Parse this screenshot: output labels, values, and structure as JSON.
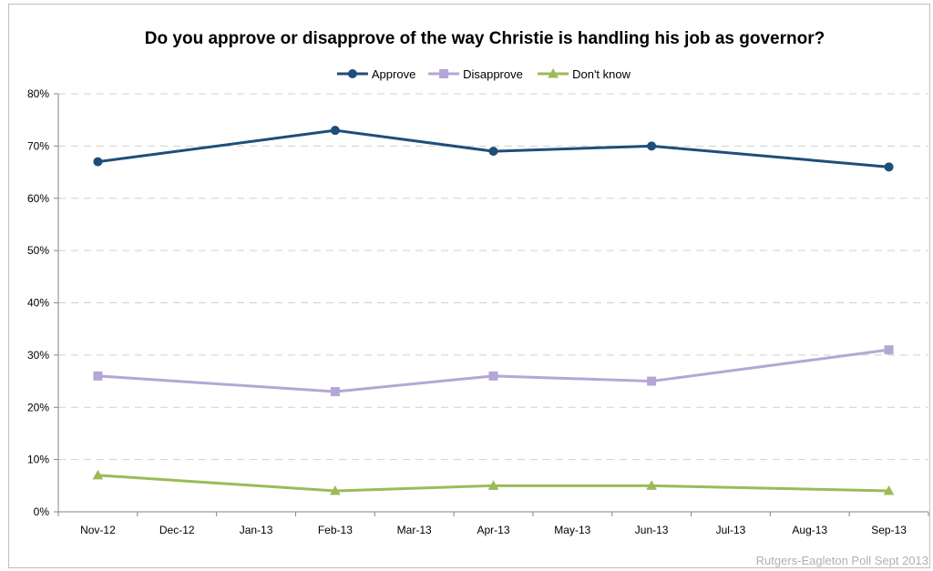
{
  "chart_data": {
    "type": "line",
    "title": "Do you approve or disapprove of the way Christie is handling his job as governor?",
    "categories": [
      "Nov-12",
      "Dec-12",
      "Jan-13",
      "Feb-13",
      "Mar-13",
      "Apr-13",
      "May-13",
      "Jun-13",
      "Jul-13",
      "Aug-13",
      "Sep-13"
    ],
    "ylim": [
      0,
      80
    ],
    "yticks": [
      "0%",
      "10%",
      "20%",
      "30%",
      "40%",
      "50%",
      "60%",
      "70%",
      "80%"
    ],
    "grid": true,
    "legend_position": "top",
    "series": [
      {
        "name": "Approve",
        "color": "#1f4e79",
        "marker": "circle",
        "points": [
          {
            "x": "Nov-12",
            "y": 67
          },
          {
            "x": "Feb-13",
            "y": 73
          },
          {
            "x": "Apr-13",
            "y": 69
          },
          {
            "x": "Jun-13",
            "y": 70
          },
          {
            "x": "Sep-13",
            "y": 66
          }
        ]
      },
      {
        "name": "Disapprove",
        "color": "#b4a7d6",
        "marker": "square",
        "points": [
          {
            "x": "Nov-12",
            "y": 26
          },
          {
            "x": "Feb-13",
            "y": 23
          },
          {
            "x": "Apr-13",
            "y": 26
          },
          {
            "x": "Jun-13",
            "y": 25
          },
          {
            "x": "Sep-13",
            "y": 31
          }
        ]
      },
      {
        "name": "Don't know",
        "color": "#9bbb59",
        "marker": "triangle",
        "points": [
          {
            "x": "Nov-12",
            "y": 7
          },
          {
            "x": "Feb-13",
            "y": 4
          },
          {
            "x": "Apr-13",
            "y": 5
          },
          {
            "x": "Jun-13",
            "y": 5
          },
          {
            "x": "Sep-13",
            "y": 4
          }
        ]
      }
    ],
    "source_note": "Rutgers-Eagleton Poll Sept 2013"
  }
}
